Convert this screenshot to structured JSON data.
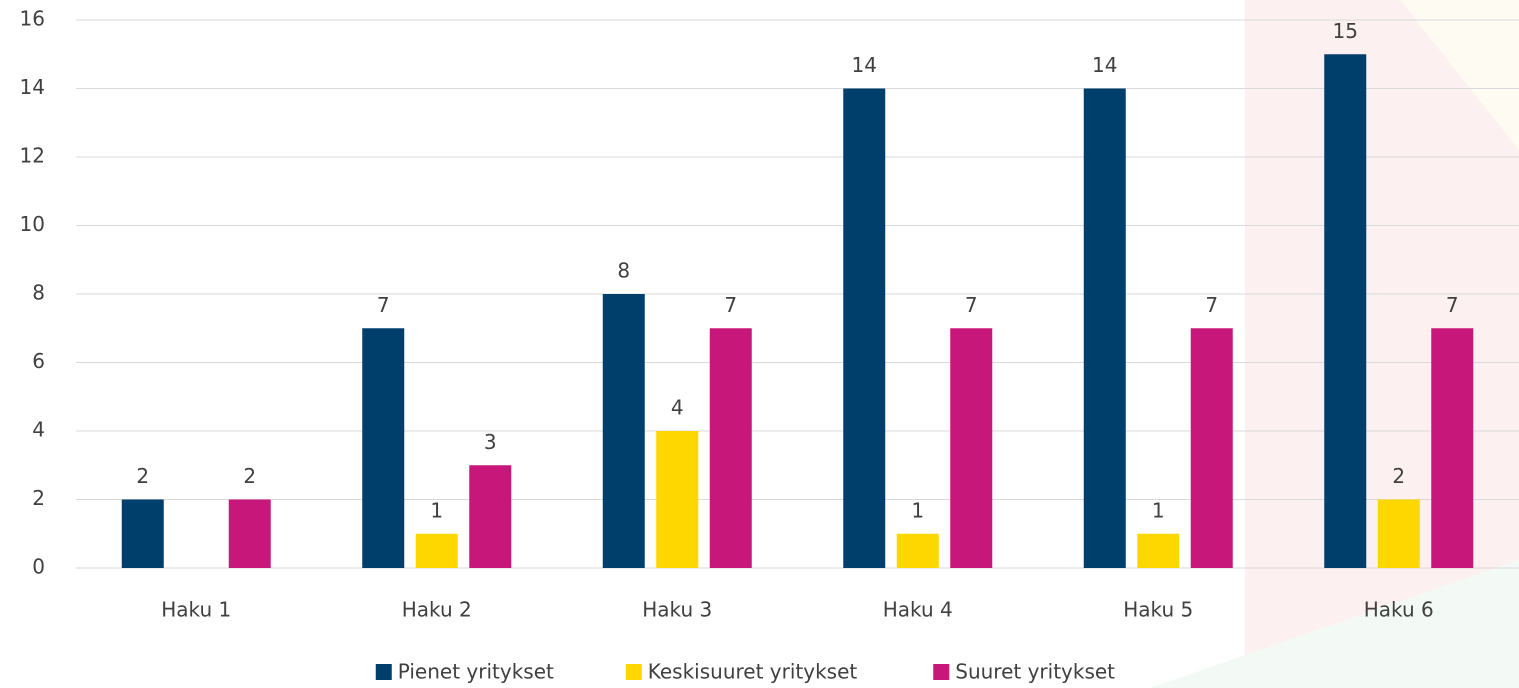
{
  "chart_data": {
    "type": "bar",
    "categories": [
      "Haku 1",
      "Haku 2",
      "Haku 3",
      "Haku 4",
      "Haku 5",
      "Haku 6"
    ],
    "series": [
      {
        "name": "Pienet yritykset",
        "color": "#003f6b",
        "values": [
          2,
          7,
          8,
          14,
          14,
          15
        ]
      },
      {
        "name": "Keskisuuret yritykset",
        "color": "#ffd700",
        "values": [
          null,
          1,
          4,
          1,
          1,
          2
        ]
      },
      {
        "name": "Suuret yritykset",
        "color": "#c8177b",
        "values": [
          2,
          3,
          7,
          7,
          7,
          7
        ]
      }
    ],
    "ylim": [
      0,
      16
    ],
    "yticks": [
      0,
      2,
      4,
      6,
      8,
      10,
      12,
      14,
      16
    ],
    "grid": true,
    "legend": "bottom"
  }
}
